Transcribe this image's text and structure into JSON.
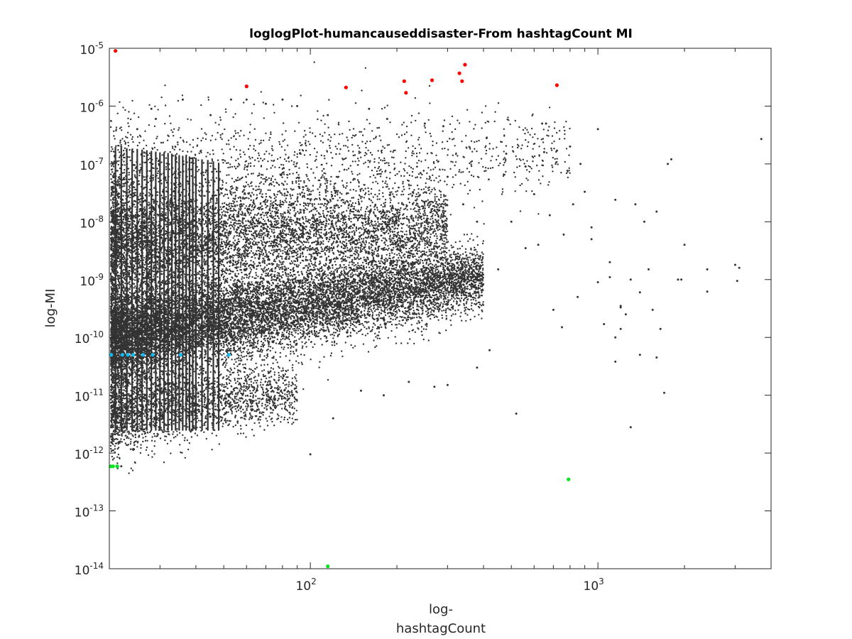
{
  "chart_data": {
    "type": "scatter",
    "title": "loglogPlot-humancauseddisaster-From hashtagCount MI",
    "xlabel_lines": [
      "log-",
      "hashtagCount"
    ],
    "ylabel": "log-MI",
    "xscale": "log",
    "yscale": "log",
    "xlim": [
      20,
      4000
    ],
    "ylim": [
      1e-14,
      1e-05
    ],
    "x_ticks": [
      {
        "value": 100,
        "base": "10",
        "exp": "2"
      },
      {
        "value": 1000,
        "base": "10",
        "exp": "3"
      }
    ],
    "y_ticks": [
      {
        "value": 1e-14,
        "base": "10",
        "exp": "-14"
      },
      {
        "value": 1e-13,
        "base": "10",
        "exp": "-13"
      },
      {
        "value": 1e-12,
        "base": "10",
        "exp": "-12"
      },
      {
        "value": 1e-11,
        "base": "10",
        "exp": "-11"
      },
      {
        "value": 1e-10,
        "base": "10",
        "exp": "-10"
      },
      {
        "value": 1e-09,
        "base": "10",
        "exp": "-9"
      },
      {
        "value": 1e-08,
        "base": "10",
        "exp": "-8"
      },
      {
        "value": 1e-07,
        "base": "10",
        "exp": "-7"
      },
      {
        "value": 1e-06,
        "base": "10",
        "exp": "-6"
      },
      {
        "value": 1e-05,
        "base": "10",
        "exp": "-5"
      }
    ],
    "grid": false,
    "legend": "none",
    "colors": {
      "bulk": "#333333",
      "top": "#ff0000",
      "low": "#00e51a",
      "equal": "#13bdf6"
    },
    "series": [
      {
        "color": "#ff0000",
        "points": [
          [
            21,
            9e-06
          ],
          [
            60,
            2.2e-06
          ],
          [
            133,
            2.1e-06
          ],
          [
            212,
            2.7e-06
          ],
          [
            215,
            1.7e-06
          ],
          [
            265,
            2.8e-06
          ],
          [
            330,
            3.7e-06
          ],
          [
            337,
            2.7e-06
          ],
          [
            345,
            5.2e-06
          ],
          [
            720,
            2.3e-06
          ]
        ]
      },
      {
        "color": "#00e51a",
        "points": [
          [
            20.2,
            5.9e-13
          ],
          [
            20.6,
            5.9e-13
          ],
          [
            21.3,
            5.9e-13
          ],
          [
            790,
            3.5e-13
          ],
          [
            115,
            1.1e-14
          ]
        ]
      },
      {
        "color": "#13bdf6",
        "points": [
          [
            20.3,
            5e-11
          ],
          [
            22.2,
            5e-11
          ],
          [
            23.2,
            5e-11
          ],
          [
            24.2,
            5e-11
          ],
          [
            26.2,
            5e-11
          ],
          [
            28.3,
            5e-11
          ],
          [
            35.4,
            5e-11
          ],
          [
            52,
            5e-11
          ]
        ]
      },
      {
        "color": "#333333",
        "points": [
          [
            3000,
            1.8e-09
          ],
          [
            3100,
            1.6e-09
          ],
          [
            3050,
            9.5e-10
          ],
          [
            2400,
            1.5e-09
          ],
          [
            2400,
            6.2e-10
          ],
          [
            1950,
            1e-09
          ],
          [
            3700,
            2.7e-07
          ],
          [
            1800,
            1.2e-07
          ],
          [
            1750,
            1e-07
          ],
          [
            1700,
            1.1e-11
          ],
          [
            1300,
            2.8e-12
          ],
          [
            1000,
            4e-07
          ],
          [
            800,
            2e-07
          ],
          [
            820,
            2e-08
          ],
          [
            520,
            4.8e-12
          ],
          [
            100,
            9.5e-13
          ],
          [
            22,
            5.9e-13
          ],
          [
            1150,
            3.8e-11
          ],
          [
            1600,
            4.5e-11
          ],
          [
            1200,
            1.4e-10
          ],
          [
            1300,
            1e-09
          ],
          [
            1400,
            6e-10
          ],
          [
            1500,
            1.5e-09
          ],
          [
            1100,
            2e-09
          ],
          [
            900,
            3.3e-08
          ],
          [
            950,
            8e-09
          ],
          [
            870,
            1e-07
          ],
          [
            640,
            5e-07
          ],
          [
            660,
            5e-07
          ],
          [
            500,
            1e-08
          ],
          [
            600,
            3e-08
          ],
          [
            700,
            3e-10
          ],
          [
            750,
            1.5e-10
          ],
          [
            850,
            5e-10
          ],
          [
            1050,
            1.7e-10
          ],
          [
            1250,
            2.5e-10
          ],
          [
            1400,
            5e-11
          ],
          [
            1550,
            3e-10
          ],
          [
            1650,
            1.4e-10
          ],
          [
            420,
            6e-11
          ],
          [
            380,
            3e-11
          ],
          [
            300,
            1.5e-11
          ],
          [
            270,
            1.4e-11
          ],
          [
            220,
            1.7e-11
          ],
          [
            180,
            1e-11
          ],
          [
            150,
            1.2e-11
          ],
          [
            120,
            4e-12
          ],
          [
            60,
            1.3e-06
          ],
          [
            53,
            1.3e-06
          ],
          [
            36,
            1.3e-06
          ],
          [
            29,
            6e-07
          ],
          [
            25,
            4e-07
          ],
          [
            28,
            9e-07
          ],
          [
            45,
            7e-07
          ],
          [
            70,
            1.1e-06
          ],
          [
            80,
            1.3e-06
          ],
          [
            90,
            1e-06
          ],
          [
            115,
            7e-07
          ],
          [
            160,
            9e-07
          ],
          [
            185,
            6e-07
          ],
          [
            250,
            5e-07
          ],
          [
            290,
            4.5e-07
          ],
          [
            410,
            2.8e-07
          ],
          [
            480,
            1.5e-07
          ],
          [
            560,
            9e-08
          ],
          [
            650,
            1.6e-07
          ],
          [
            720,
            1.7e-07
          ],
          [
            1150,
            2.4e-08
          ],
          [
            1350,
            2e-08
          ],
          [
            1450,
            1e-08
          ],
          [
            1600,
            1.5e-08
          ],
          [
            1900,
            1e-09
          ],
          [
            2000,
            4e-09
          ],
          [
            1200,
            3.5e-10
          ],
          [
            1100,
            1.1e-09
          ],
          [
            950,
            5e-09
          ],
          [
            760,
            6e-09
          ],
          [
            680,
            1.3e-08
          ],
          [
            620,
            4e-09
          ],
          [
            560,
            3.5e-09
          ],
          [
            450,
            1.5e-09
          ],
          [
            380,
            1e-08
          ],
          [
            340,
            2e-08
          ],
          [
            300,
            6e-08
          ],
          [
            1000,
            9e-10
          ],
          [
            1150,
            1e-10
          ],
          [
            1200,
            3.3e-10
          ]
        ]
      }
    ],
    "clouds": [
      {
        "x_range": [
          20,
          400
        ],
        "log_y_center": -10.0,
        "log_y_sd": 0.42,
        "slope": 0.9,
        "n": 13000
      },
      {
        "x_range": [
          20,
          300
        ],
        "log_y_center": -8.4,
        "log_y_sd": 0.55,
        "slope": 0.35,
        "n": 7000
      },
      {
        "x_range": [
          20,
          800
        ],
        "log_y_center": -7.2,
        "log_y_sd": 0.55,
        "slope": 0.3,
        "n": 1500
      },
      {
        "x_range": [
          20,
          90
        ],
        "log_y_center": -11.3,
        "log_y_sd": 0.35,
        "slope": 0.6,
        "n": 2500
      }
    ],
    "stripes": {
      "x_values": [
        20,
        21,
        22,
        23,
        24,
        25,
        26,
        27,
        28,
        29,
        30,
        31,
        32,
        33,
        34,
        35,
        36,
        37,
        38,
        39,
        40,
        42,
        44,
        46,
        48
      ],
      "log_y_min": -11.6,
      "log_y_max": -6.7
    }
  }
}
